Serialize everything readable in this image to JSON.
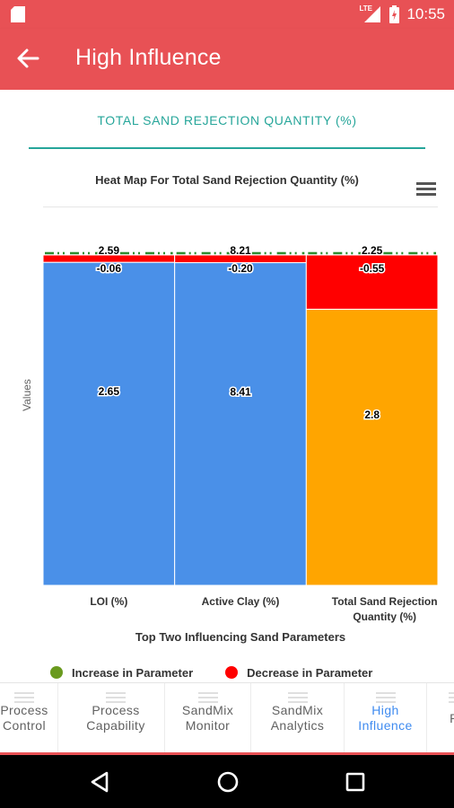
{
  "status_bar": {
    "network": "LTE",
    "time": "10:55"
  },
  "app_bar": {
    "title": "High Influence"
  },
  "tab": {
    "label": "TOTAL SAND REJECTION QUANTITY (%)"
  },
  "chart_data": {
    "type": "heatmap",
    "title": "Heat Map For Total Sand Rejection Quantity (%)",
    "xlabel": "Top Two Influencing Sand Parameters",
    "ylabel": "Values",
    "categories": [
      "LOI (%)",
      "Active Clay (%)",
      "Total Sand Rejection Quantity (%)"
    ],
    "category_lines": [
      [
        "LOI (%)"
      ],
      [
        "Active Clay (%)"
      ],
      [
        "Total Sand Rejection",
        "Quantity (%)"
      ]
    ],
    "series": [
      {
        "values": [
          2.65,
          8.41,
          2.8
        ],
        "colors": [
          "#4a90e8",
          "#4a90e8",
          "#ffa500"
        ],
        "labels": [
          "2.65",
          "8.41",
          "2.8"
        ]
      },
      {
        "values": [
          -0.06,
          -0.2,
          -0.55
        ],
        "colors": [
          "#ff0000",
          "#ff0000",
          "#ff0000"
        ],
        "labels": [
          "-0.06",
          "-0.20",
          "-0.55"
        ]
      }
    ],
    "totals": [
      2.59,
      8.21,
      2.25
    ],
    "total_labels": [
      "2.59",
      "8.21",
      "2.25"
    ],
    "total_marker_color": "#2e8b2e",
    "legend": [
      {
        "label": "Increase in Parameter",
        "color": "#6a9a1f"
      },
      {
        "label": "Decrease in Parameter",
        "color": "#ff0000"
      }
    ],
    "legend_position": "bottom"
  },
  "bottom_nav": {
    "items": [
      {
        "lines": [
          "Process",
          "Control"
        ],
        "active": false
      },
      {
        "lines": [
          "Process",
          "Capability"
        ],
        "active": false
      },
      {
        "lines": [
          "SandMix",
          "Monitor"
        ],
        "active": false
      },
      {
        "lines": [
          "SandMix",
          "Analytics"
        ],
        "active": false
      },
      {
        "lines": [
          "High",
          "Influence"
        ],
        "active": true
      },
      {
        "lines": [
          "Ra"
        ],
        "active": false
      }
    ]
  },
  "colors": {
    "primary": "#e85155",
    "tab_accent": "#26a69a",
    "nav_active": "#3f8bf0"
  }
}
